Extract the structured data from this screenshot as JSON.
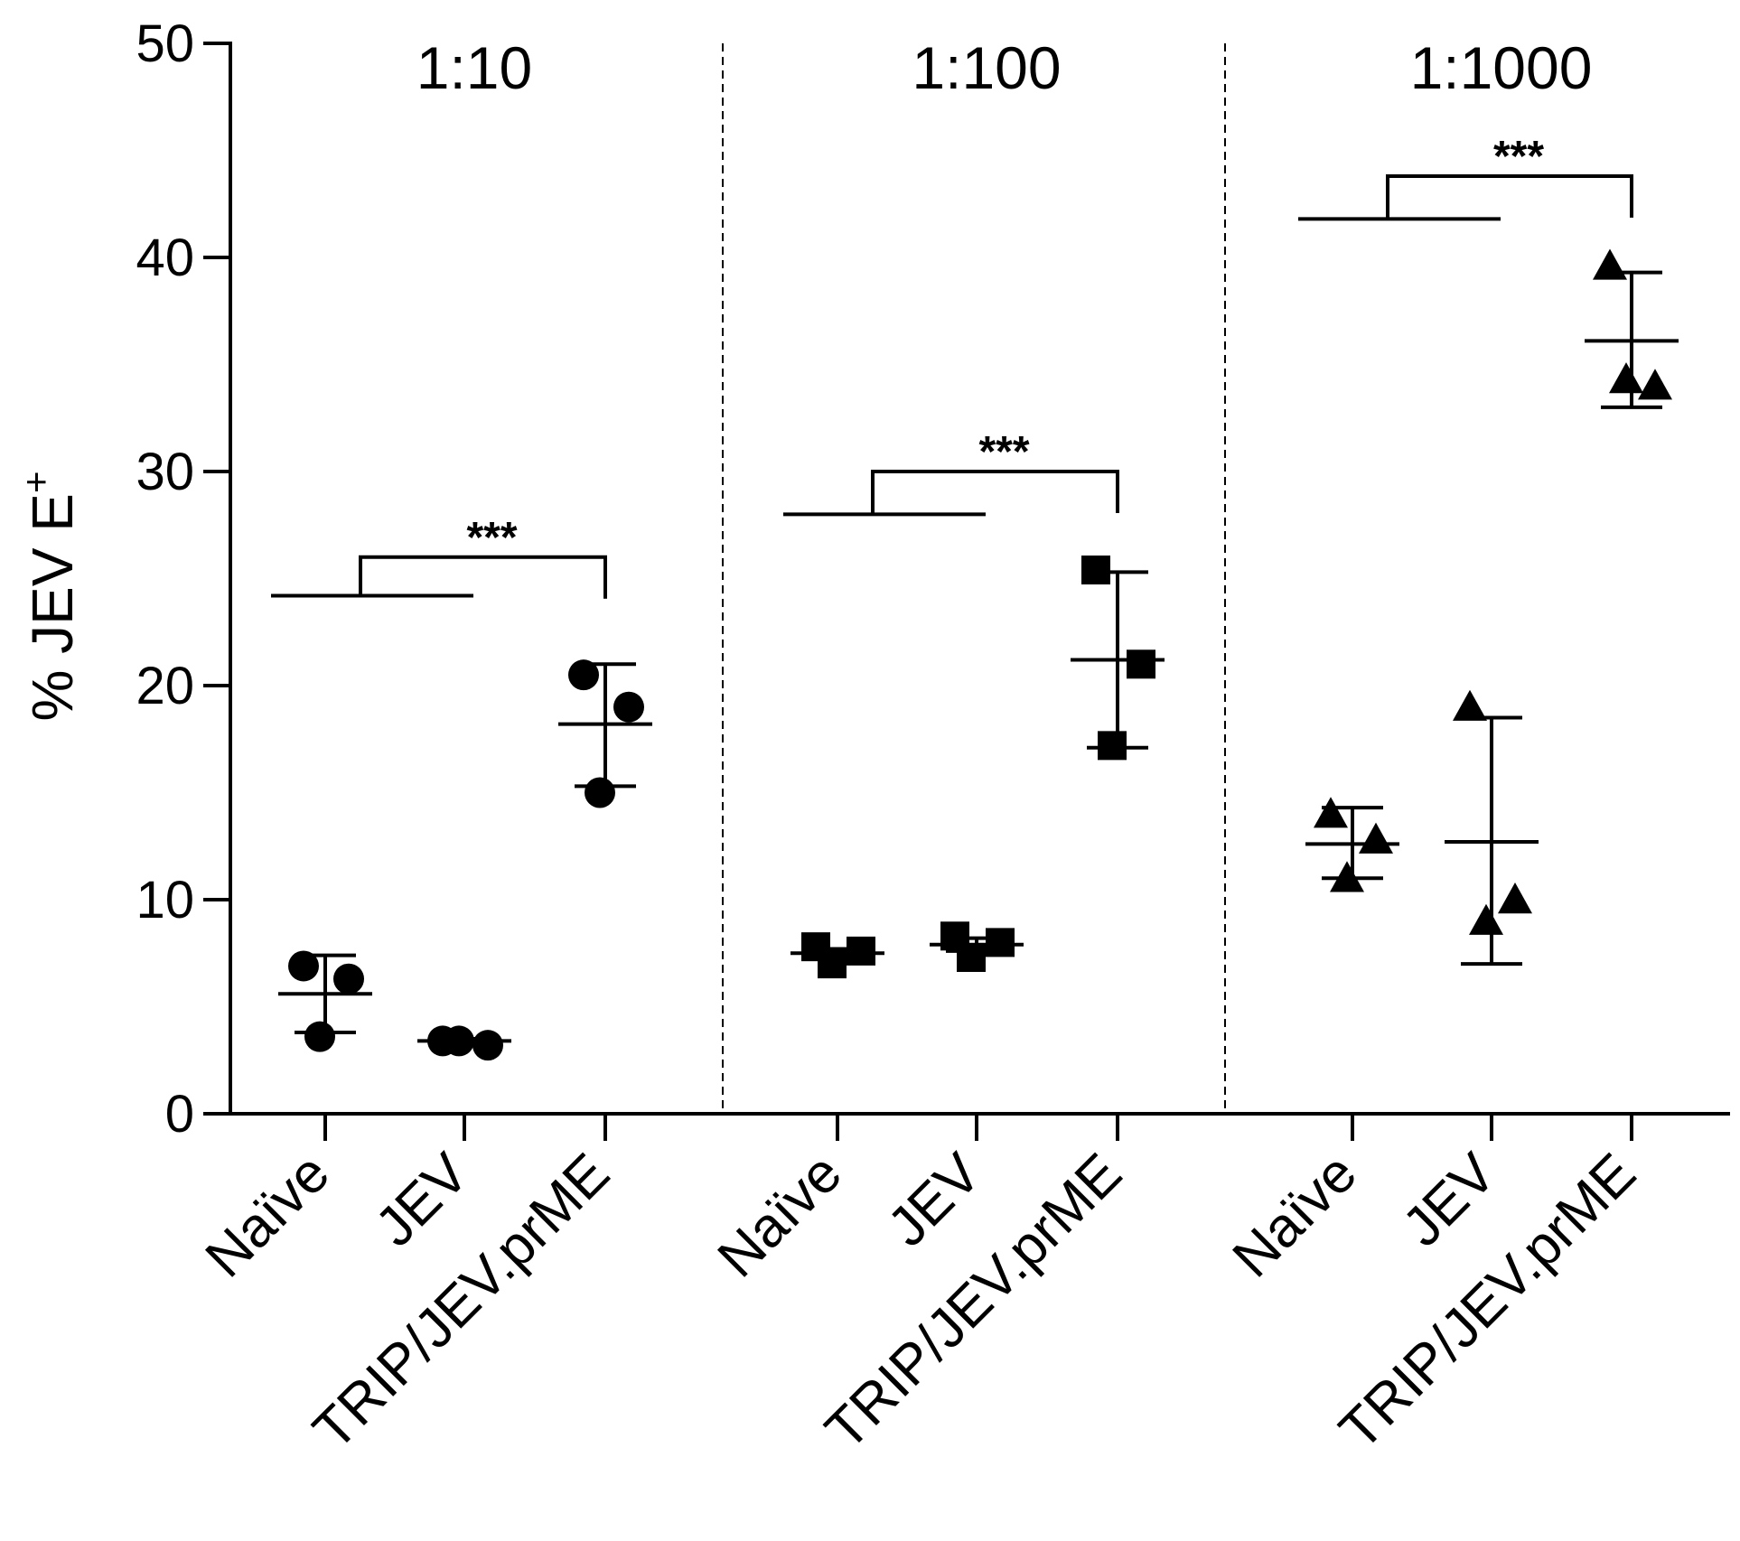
{
  "chart_data": {
    "type": "scatter",
    "ylabel": "% JEV E",
    "ylabel_superscript": "+",
    "ylim": [
      0,
      50
    ],
    "yticks": [
      0,
      10,
      20,
      30,
      40,
      50
    ],
    "grid": false,
    "legend": "none",
    "panels": [
      {
        "title": "1:10",
        "marker": "circle",
        "categories": [
          "Naïve",
          "JEV",
          "TRIP/JEV.prME"
        ],
        "groups": [
          {
            "category": "Naïve",
            "points": [
              6.9,
              6.3,
              3.6
            ],
            "mean": 5.6,
            "sd_low": 3.8,
            "sd_high": 7.4
          },
          {
            "category": "JEV",
            "points": [
              3.4,
              3.2,
              3.4
            ],
            "mean": 3.4,
            "sd_low": 3.3,
            "sd_high": 3.5
          },
          {
            "category": "TRIP/JEV.prME",
            "points": [
              20.5,
              19.0,
              15.0
            ],
            "mean": 18.2,
            "sd_low": 15.3,
            "sd_high": 21.0
          }
        ],
        "significance": {
          "label": "***",
          "y_left": 24.2,
          "y_top": 26.0
        }
      },
      {
        "title": "1:100",
        "marker": "square",
        "categories": [
          "Naïve",
          "JEV",
          "TRIP/JEV.prME"
        ],
        "groups": [
          {
            "category": "Naïve",
            "points": [
              7.8,
              7.6,
              7.0
            ],
            "mean": 7.5,
            "sd_low": 7.3,
            "sd_high": 7.7
          },
          {
            "category": "JEV",
            "points": [
              8.3,
              8.0,
              7.3
            ],
            "mean": 7.9,
            "sd_low": 7.6,
            "sd_high": 8.2
          },
          {
            "category": "TRIP/JEV.prME",
            "points": [
              25.4,
              21.0,
              17.2
            ],
            "mean": 21.2,
            "sd_low": 17.1,
            "sd_high": 25.3
          }
        ],
        "significance": {
          "label": "***",
          "y_left": 28.0,
          "y_top": 30.0
        }
      },
      {
        "title": "1:1000",
        "marker": "triangle",
        "categories": [
          "Naïve",
          "JEV",
          "TRIP/JEV.prME"
        ],
        "groups": [
          {
            "category": "Naïve",
            "points": [
              14.0,
              12.8,
              11.0
            ],
            "mean": 12.6,
            "sd_low": 11.0,
            "sd_high": 14.3
          },
          {
            "category": "JEV",
            "points": [
              19.0,
              10.0,
              9.0
            ],
            "mean": 12.7,
            "sd_low": 7.0,
            "sd_high": 18.5
          },
          {
            "category": "TRIP/JEV.prME",
            "points": [
              39.6,
              34.0,
              34.3
            ],
            "mean": 36.1,
            "sd_low": 33.0,
            "sd_high": 39.3
          }
        ],
        "significance": {
          "label": "***",
          "y_left": 41.8,
          "y_top": 43.8
        }
      }
    ]
  }
}
